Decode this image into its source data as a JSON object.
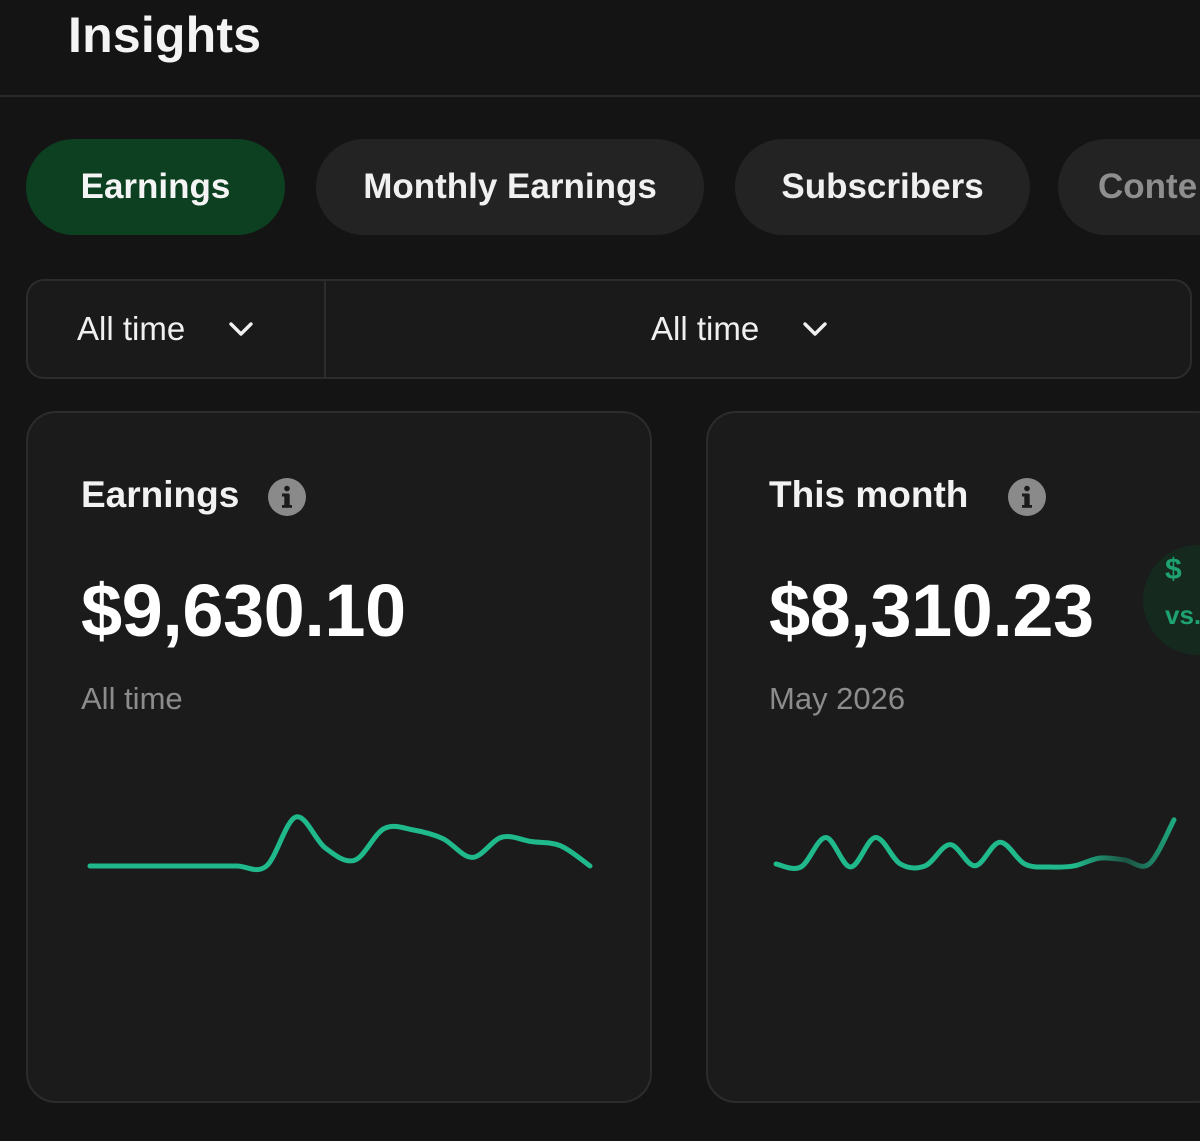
{
  "header": {
    "title": "Insights"
  },
  "tabs": [
    {
      "label": "Earnings",
      "active": true
    },
    {
      "label": "Monthly Earnings",
      "active": false
    },
    {
      "label": "Subscribers",
      "active": false
    },
    {
      "label": "Conte",
      "active": false,
      "truncated": true
    }
  ],
  "filters": [
    {
      "label": "All time",
      "icon": "chevron-down-icon"
    },
    {
      "label": "All time",
      "icon": "chevron-down-icon"
    }
  ],
  "cards": [
    {
      "title": "Earnings",
      "icon": "info-icon",
      "amount": "$9,630.10",
      "period": "All time",
      "sparkline": [
        0,
        0,
        0,
        0,
        0,
        0,
        0,
        0.68,
        0.25,
        0.08,
        0.52,
        0.5,
        0.38,
        0.12,
        0.4,
        0.34,
        0.28,
        0
      ]
    },
    {
      "title": "This month",
      "icon": "info-icon",
      "amount": "$8,310.23",
      "period": "May 2026",
      "sparkline": [
        0.05,
        0,
        0.5,
        0,
        0.5,
        0.05,
        0.02,
        0.38,
        0.02,
        0.42,
        0.05,
        0,
        0.02,
        0.15,
        0.12,
        0.05,
        0.8
      ],
      "badge": {
        "line1": "$",
        "line2": "vs."
      }
    }
  ],
  "colors": {
    "background": "#141414",
    "card": "#1b1b1b",
    "tab": "#232323",
    "active_tab": "#0c4020",
    "accent": "#1fb98b",
    "muted_text": "#8c8c8c"
  }
}
